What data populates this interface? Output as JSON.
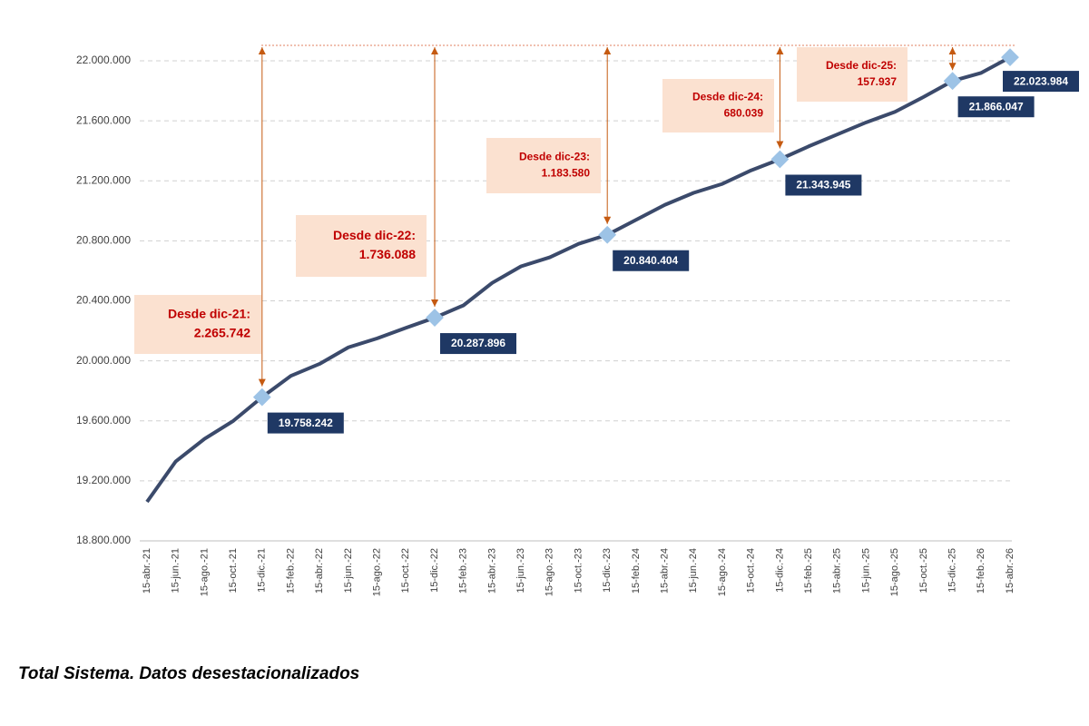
{
  "chart_data": {
    "type": "line",
    "caption": "Total Sistema. Datos desestacionalizados",
    "categories": [
      "15-abr.-21",
      "15-jun.-21",
      "15-ago.-21",
      "15-oct.-21",
      "15-dic.-21",
      "15-feb.-22",
      "15-abr.-22",
      "15-jun.-22",
      "15-ago.-22",
      "15-oct.-22",
      "15-dic.-22",
      "15-feb.-23",
      "15-abr.-23",
      "15-jun.-23",
      "15-ago.-23",
      "15-oct.-23",
      "15-dic.-23",
      "15-feb.-24",
      "15-abr.-24",
      "15-jun.-24",
      "15-ago.-24",
      "15-oct.-24",
      "15-dic.-24",
      "15-feb.-25",
      "15-abr.-25",
      "15-jun.-25",
      "15-ago.-25",
      "15-oct.-25",
      "15-dic.-25",
      "15-feb.-26",
      "15-abr.-26"
    ],
    "values": [
      19060000,
      19330000,
      19480000,
      19600000,
      19758242,
      19900000,
      19980000,
      20090000,
      20150000,
      20220000,
      20287896,
      20370000,
      20520000,
      20630000,
      20690000,
      20780000,
      20840404,
      20940000,
      21040000,
      21120000,
      21180000,
      21270000,
      21343945,
      21430000,
      21510000,
      21590000,
      21660000,
      21760000,
      21866047,
      21920000,
      22023984
    ],
    "value_labels": [
      null,
      null,
      null,
      null,
      "19.758.242",
      null,
      null,
      null,
      null,
      null,
      "20.287.896",
      null,
      null,
      null,
      null,
      null,
      "20.840.404",
      null,
      null,
      null,
      null,
      null,
      "21.343.945",
      null,
      null,
      null,
      null,
      null,
      "21.866.047",
      null,
      "22.023.984"
    ],
    "color": "#3b4a6b",
    "marker_color": "#9dc3e6",
    "ylim": [
      18800000,
      22200000
    ],
    "yticks": [
      {
        "value": 18800000,
        "label": "18.800.000"
      },
      {
        "value": 19200000,
        "label": "19.200.000"
      },
      {
        "value": 19600000,
        "label": "19.600.000"
      },
      {
        "value": 20000000,
        "label": "20.000.000"
      },
      {
        "value": 20400000,
        "label": "20.400.000"
      },
      {
        "value": 20800000,
        "label": "20.800.000"
      },
      {
        "value": 21200000,
        "label": "21.200.000"
      },
      {
        "value": 21600000,
        "label": "21.600.000"
      },
      {
        "value": 22000000,
        "label": "22.000.000"
      }
    ],
    "grid": true,
    "annotations": [
      {
        "title": "Desde dic-21:",
        "value": "2.265.742"
      },
      {
        "title": "Desde dic-22:",
        "value": "1.736.088"
      },
      {
        "title": "Desde dic-23:",
        "value": "1.183.580"
      },
      {
        "title": "Desde dic-24:",
        "value": "680.039"
      },
      {
        "title": "Desde dic-25:",
        "value": "157.937"
      }
    ]
  }
}
